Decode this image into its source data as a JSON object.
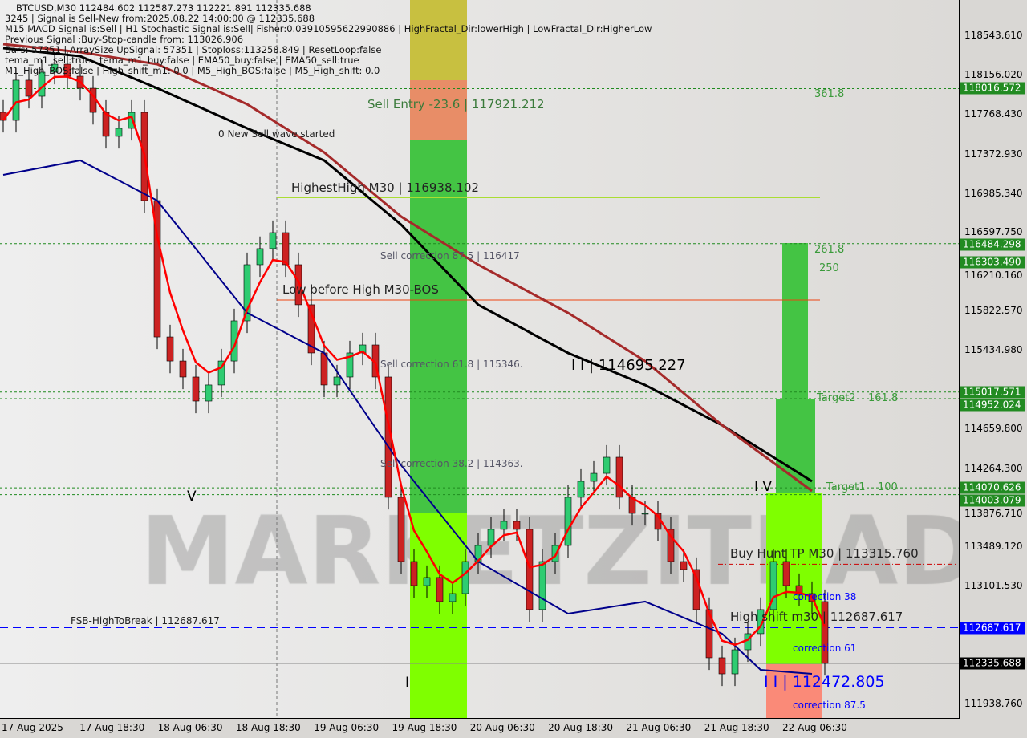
{
  "header": {
    "line1": "BTCUSD,M30  112484.602 112587.273 112221.891 112335.688",
    "line2": "3245 | Signal is Sell-New from:2025.08.22 14:00:00 @ 112335.688",
    "line3": "M15 MACD Signal is:Sell | H1 Stochastic Signal is:Sell| Fisher:0.0391059562299088​6 | HighFractal_Dir:lowerHigh | LowFractal_Dir:HigherLow",
    "line4": "Previous Signal :Buy-Stop-candle from: 113026.906",
    "line5": "Bars: 57351 | ArraySize UpSignal: 57351 | Stoploss:113258.849 | ResetLoop:false",
    "line6": "tema_m1_sell:true | tema_m1_buy:false | EMA50_buy:false | EMA50_sell:true",
    "line7": "M1_High_BOS:false | High_shift_m1: 0.0 | M5_High_BOS:false | M5_High_shift: 0.0"
  },
  "watermark": "MARKETZITRADE",
  "annotations": {
    "sell_entry": "Sell Entry -23.6 | 117921.212",
    "new_sell_wave": "0 New Sell wave started",
    "highest_high": "HighestHigh   M30 | 116938.102",
    "sell_corr_875": "Sell correction 87.5 | 116417",
    "low_before_high": "Low before High   M30-BOS",
    "sell_corr_618": "Sell correction 61.8 | 115346.",
    "wave_ii": "I I | 114695.227",
    "sell_corr_382": "Sell correction 38.2 | 114363.",
    "wave_v": "V",
    "wave_iv": "I V",
    "wave_i": "I",
    "buy_hunt_tp": "Buy Hunt TP M30 | 113315.760",
    "high_shift": "High shift m30 | 112687.617",
    "correction_38": "correction 38",
    "correction_61": "correction 61",
    "correction_875": "correction 87.5",
    "wave_ii_low": "I I | 112472.805",
    "fsb": "FSB-HighToBreak | 112687.617",
    "fib_3618": "361.8",
    "fib_2618": "261.8",
    "fib_250": "250",
    "target2": "Target2",
    "fib_1618": "161.8",
    "target1": "Target1",
    "fib_100": "100"
  },
  "colors": {
    "bull": "#2ecc71",
    "bear": "#cc2222",
    "ema_fast": "#ff0000",
    "ma_black": "#000000",
    "ma_brown": "#a52a2a",
    "ma_blue": "#00008b",
    "level": "#1f8a1f",
    "fsb": "#0000ff"
  },
  "price_axis": {
    "ticks": [
      "118543.610",
      "118156.020",
      "117768.430",
      "117372.930",
      "116985.340",
      "116597.750",
      "116210.160",
      "115822.570",
      "115434.980",
      "114659.800",
      "114264.300",
      "113876.710",
      "113489.120",
      "113101.530",
      "111938.760"
    ],
    "level_labels": [
      "118016.572",
      "116484.298",
      "116303.490",
      "115017.571",
      "114952.024",
      "114070.626",
      "114003.079"
    ],
    "fsb_label": "112687.617",
    "current_label": "112335.688"
  },
  "chart_data": {
    "type": "candlestick",
    "symbol": "BTCUSD",
    "timeframe": "M30",
    "x_ticks": [
      "17 Aug 2025",
      "17 Aug 18:30",
      "18 Aug 06:30",
      "18 Aug 18:30",
      "19 Aug 06:30",
      "19 Aug 18:30",
      "20 Aug 06:30",
      "20 Aug 18:30",
      "21 Aug 06:30",
      "21 Aug 18:30",
      "22 Aug 06:30"
    ],
    "ylim": [
      111800,
      118900
    ],
    "close": [
      117703,
      118100,
      117941,
      118179,
      118258,
      118139,
      118020,
      117782,
      117545,
      117624,
      117782,
      116910,
      115562,
      115324,
      115166,
      114928,
      115087,
      115324,
      115721,
      116276,
      116435,
      116593,
      116276,
      115880,
      115404,
      115087,
      115166,
      115404,
      115483,
      115166,
      113977,
      113342,
      113104,
      113184,
      112946,
      113025,
      113342,
      113501,
      113660,
      113739,
      113660,
      112867,
      113342,
      113501,
      113977,
      114135,
      114214,
      114373,
      113977,
      113818,
      113818,
      113660,
      113342,
      113263,
      112867,
      112391,
      112232,
      112470,
      112629,
      112867,
      113342,
      113104,
      113025,
      112946,
      112335.688
    ],
    "series": [
      {
        "key": "black",
        "points": [
          [
            0,
            118417
          ],
          [
            6,
            118337
          ],
          [
            12,
            118020
          ],
          [
            19,
            117624
          ],
          [
            25,
            117307
          ],
          [
            31,
            116672
          ],
          [
            37,
            115880
          ],
          [
            44,
            115404
          ],
          [
            50,
            115087
          ],
          [
            56,
            114690
          ],
          [
            63,
            114135
          ]
        ]
      },
      {
        "key": "brown",
        "points": [
          [
            0,
            118456
          ],
          [
            6,
            118377
          ],
          [
            12,
            118258
          ],
          [
            19,
            117862
          ],
          [
            25,
            117386
          ],
          [
            31,
            116751
          ],
          [
            37,
            116276
          ],
          [
            44,
            115800
          ],
          [
            50,
            115324
          ],
          [
            56,
            114690
          ],
          [
            63,
            114040
          ]
        ]
      },
      {
        "key": "blue",
        "points": [
          [
            0,
            117164
          ],
          [
            6,
            117307
          ],
          [
            12,
            116910
          ],
          [
            19,
            115800
          ],
          [
            25,
            115404
          ],
          [
            31,
            114293
          ],
          [
            37,
            113342
          ],
          [
            44,
            112827
          ],
          [
            50,
            112946
          ],
          [
            56,
            112629
          ],
          [
            59,
            112272
          ],
          [
            63,
            112232
          ]
        ]
      }
    ],
    "levels": [
      118016.572,
      116484.298,
      116303.49,
      115017.571,
      114952.024,
      114070.626,
      114003.079
    ],
    "fsb_level": 112687.617,
    "current_price": 112335.688,
    "highest_high": 116938.102,
    "low_before_high": 115900,
    "buy_hunt_tp": 113315.76
  }
}
